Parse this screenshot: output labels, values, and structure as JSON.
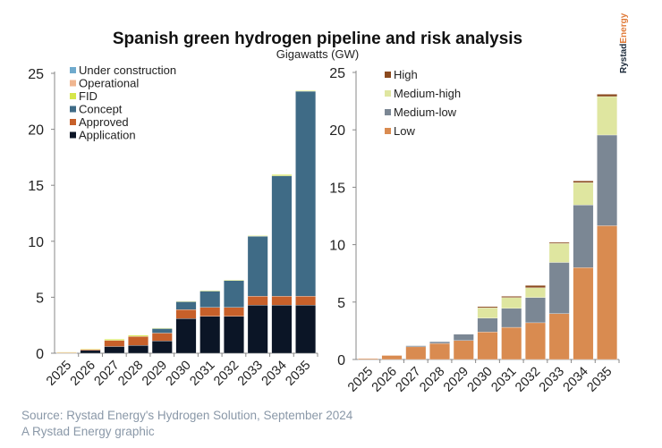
{
  "header": {
    "title": "Spanish green hydrogen pipeline and risk analysis",
    "subtitle": "Gigawatts (GW)",
    "logo_text": "Rystad Energy"
  },
  "footer": {
    "source": "Source: Rystad Energy's Hydrogen Solution, September 2024",
    "credit": "A Rystad Energy graphic"
  },
  "chart_data": [
    {
      "type": "bar",
      "stacked": true,
      "categories": [
        "2025",
        "2026",
        "2027",
        "2028",
        "2029",
        "2030",
        "2031",
        "2032",
        "2033",
        "2034",
        "2035"
      ],
      "ylim": [
        0,
        25
      ],
      "yticks": [
        0,
        5,
        10,
        15,
        20,
        25
      ],
      "grid": false,
      "legend_position": "top-left",
      "series": [
        {
          "name": "Application",
          "color": "#0b1526",
          "values": [
            0.02,
            0.25,
            0.6,
            0.7,
            1.1,
            3.1,
            3.3,
            3.3,
            4.3,
            4.3,
            4.3
          ]
        },
        {
          "name": "Approved",
          "color": "#c7602a",
          "values": [
            0.03,
            0.1,
            0.55,
            0.8,
            0.7,
            0.8,
            0.8,
            0.8,
            0.8,
            0.8,
            0.8
          ]
        },
        {
          "name": "Concept",
          "color": "#3f6b86",
          "values": [
            0,
            0,
            0,
            0,
            0.4,
            0.7,
            1.45,
            2.4,
            5.35,
            10.75,
            18.3
          ]
        },
        {
          "name": "FID",
          "color": "#d6e64a",
          "values": [
            0.05,
            0.05,
            0.1,
            0.1,
            0.05,
            0.05,
            0.05,
            0.05,
            0.05,
            0.1,
            0.05
          ]
        },
        {
          "name": "Operational",
          "color": "#f0b690",
          "values": [
            0,
            0,
            0,
            0,
            0,
            0,
            0,
            0,
            0,
            0,
            0
          ]
        },
        {
          "name": "Under construction",
          "color": "#6faacd",
          "values": [
            0,
            0,
            0,
            0,
            0,
            0,
            0,
            0,
            0,
            0,
            0
          ]
        }
      ]
    },
    {
      "type": "bar",
      "stacked": true,
      "categories": [
        "2025",
        "2026",
        "2027",
        "2028",
        "2029",
        "2030",
        "2031",
        "2032",
        "2033",
        "2034",
        "2035"
      ],
      "ylim": [
        0,
        25
      ],
      "yticks": [
        0,
        5,
        10,
        15,
        20,
        25
      ],
      "grid": false,
      "legend_position": "top-left",
      "series": [
        {
          "name": "Low",
          "color": "#d98b50",
          "values": [
            0.08,
            0.35,
            1.1,
            1.4,
            1.65,
            2.4,
            2.8,
            3.2,
            4.0,
            8.0,
            11.65
          ]
        },
        {
          "name": "Medium-low",
          "color": "#7b8794",
          "values": [
            0,
            0,
            0.1,
            0.15,
            0.55,
            1.2,
            1.65,
            2.2,
            4.45,
            5.45,
            7.9
          ]
        },
        {
          "name": "Medium-high",
          "color": "#dfe6a0",
          "values": [
            0,
            0,
            0,
            0,
            0,
            0.9,
            0.95,
            0.85,
            1.65,
            1.95,
            3.35
          ]
        },
        {
          "name": "High",
          "color": "#8b4a1e",
          "values": [
            0,
            0,
            0,
            0,
            0,
            0.1,
            0.1,
            0.2,
            0.1,
            0.15,
            0.2
          ]
        }
      ]
    }
  ]
}
